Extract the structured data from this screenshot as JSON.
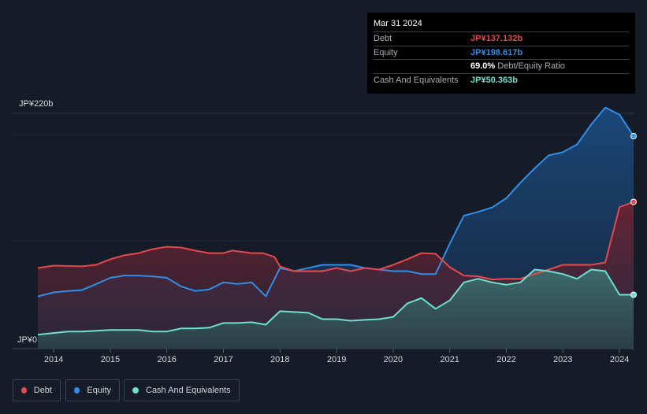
{
  "tooltip": {
    "date": "Mar 31 2024",
    "debt_label": "Debt",
    "debt_value": "JP¥137.132b",
    "equity_label": "Equity",
    "equity_value": "JP¥198.617b",
    "ratio_value": "69.0%",
    "ratio_label": "Debt/Equity Ratio",
    "cash_label": "Cash And Equivalents",
    "cash_value": "JP¥50.363b"
  },
  "legend": {
    "debt": "Debt",
    "equity": "Equity",
    "cash": "Cash And Equivalents"
  },
  "colors": {
    "debt": "#e5484d",
    "equity": "#2f8fe8",
    "cash": "#6fe0cf",
    "background": "#151c28"
  },
  "chart_data": {
    "type": "area",
    "title": "",
    "ylim": [
      0,
      220
    ],
    "xlim": [
      2013.72,
      2024.25
    ],
    "y_top_label": "JP¥220b",
    "y_bottom_label": "JP¥0",
    "x_ticks": [
      2014,
      2015,
      2016,
      2017,
      2018,
      2019,
      2020,
      2021,
      2022,
      2023,
      2024
    ],
    "x_tick_labels": [
      "2014",
      "2015",
      "2016",
      "2017",
      "2018",
      "2019",
      "2020",
      "2021",
      "2022",
      "2023",
      "2024"
    ],
    "series": [
      {
        "name": "Debt",
        "points": [
          [
            2013.72,
            75.4
          ],
          [
            2014.0,
            77.6
          ],
          [
            2014.5,
            76.9
          ],
          [
            2014.75,
            78.3
          ],
          [
            2015.0,
            83.5
          ],
          [
            2015.25,
            87.2
          ],
          [
            2015.5,
            89.3
          ],
          [
            2015.75,
            93.0
          ],
          [
            2016.0,
            95.2
          ],
          [
            2016.25,
            94.5
          ],
          [
            2016.5,
            91.6
          ],
          [
            2016.75,
            89.3
          ],
          [
            2017.0,
            89.3
          ],
          [
            2017.15,
            91.6
          ],
          [
            2017.5,
            89.3
          ],
          [
            2017.7,
            89.3
          ],
          [
            2017.9,
            85.7
          ],
          [
            2018.0,
            76.9
          ],
          [
            2018.25,
            72.4
          ],
          [
            2018.5,
            72.4
          ],
          [
            2018.75,
            72.4
          ],
          [
            2019.0,
            75.4
          ],
          [
            2019.25,
            72.4
          ],
          [
            2019.5,
            75.4
          ],
          [
            2019.75,
            73.9
          ],
          [
            2020.0,
            78.3
          ],
          [
            2020.25,
            83.5
          ],
          [
            2020.5,
            89.3
          ],
          [
            2020.75,
            88.7
          ],
          [
            2021.0,
            76.2
          ],
          [
            2021.25,
            68.3
          ],
          [
            2021.5,
            67.6
          ],
          [
            2021.75,
            64.6
          ],
          [
            2022.0,
            65.3
          ],
          [
            2022.25,
            65.3
          ],
          [
            2022.5,
            69.7
          ],
          [
            2022.75,
            73.9
          ],
          [
            2023.0,
            78.3
          ],
          [
            2023.25,
            78.3
          ],
          [
            2023.5,
            78.3
          ],
          [
            2023.75,
            80.5
          ],
          [
            2024.0,
            132.2
          ],
          [
            2024.25,
            137.1
          ]
        ]
      },
      {
        "name": "Equity",
        "points": [
          [
            2013.72,
            48.8
          ],
          [
            2014.0,
            52.6
          ],
          [
            2014.25,
            53.9
          ],
          [
            2014.5,
            54.7
          ],
          [
            2014.75,
            60.4
          ],
          [
            2015.0,
            66.2
          ],
          [
            2015.25,
            68.3
          ],
          [
            2015.5,
            68.3
          ],
          [
            2015.75,
            67.6
          ],
          [
            2016.0,
            66.2
          ],
          [
            2016.25,
            58.2
          ],
          [
            2016.5,
            53.9
          ],
          [
            2016.75,
            55.4
          ],
          [
            2017.0,
            61.9
          ],
          [
            2017.25,
            60.4
          ],
          [
            2017.5,
            61.9
          ],
          [
            2017.75,
            48.8
          ],
          [
            2018.0,
            75.4
          ],
          [
            2018.25,
            72.4
          ],
          [
            2018.5,
            75.4
          ],
          [
            2018.75,
            78.3
          ],
          [
            2019.0,
            78.3
          ],
          [
            2019.25,
            78.3
          ],
          [
            2019.5,
            75.4
          ],
          [
            2019.75,
            73.9
          ],
          [
            2020.0,
            72.4
          ],
          [
            2020.25,
            72.4
          ],
          [
            2020.5,
            69.7
          ],
          [
            2020.75,
            69.7
          ],
          [
            2021.0,
            98.0
          ],
          [
            2021.25,
            124.2
          ],
          [
            2021.5,
            127.8
          ],
          [
            2021.75,
            131.9
          ],
          [
            2022.0,
            140.6
          ],
          [
            2022.25,
            155.1
          ],
          [
            2022.5,
            168.4
          ],
          [
            2022.75,
            180.6
          ],
          [
            2023.0,
            183.5
          ],
          [
            2023.25,
            190.8
          ],
          [
            2023.5,
            209.4
          ],
          [
            2023.75,
            225.2
          ],
          [
            2024.0,
            218.7
          ],
          [
            2024.25,
            198.6
          ]
        ]
      },
      {
        "name": "Cash And Equivalents",
        "points": [
          [
            2013.72,
            13.1
          ],
          [
            2014.0,
            14.6
          ],
          [
            2014.25,
            16.0
          ],
          [
            2014.5,
            16.0
          ],
          [
            2014.75,
            16.7
          ],
          [
            2015.0,
            17.5
          ],
          [
            2015.25,
            17.5
          ],
          [
            2015.5,
            17.5
          ],
          [
            2015.75,
            16.0
          ],
          [
            2016.0,
            16.0
          ],
          [
            2016.25,
            18.9
          ],
          [
            2016.5,
            18.9
          ],
          [
            2016.75,
            19.6
          ],
          [
            2017.0,
            24.0
          ],
          [
            2017.25,
            24.0
          ],
          [
            2017.5,
            24.7
          ],
          [
            2017.75,
            22.4
          ],
          [
            2018.0,
            35.0
          ],
          [
            2018.25,
            34.3
          ],
          [
            2018.5,
            33.5
          ],
          [
            2018.75,
            27.6
          ],
          [
            2019.0,
            27.6
          ],
          [
            2019.25,
            26.1
          ],
          [
            2019.5,
            26.9
          ],
          [
            2019.75,
            27.6
          ],
          [
            2020.0,
            29.6
          ],
          [
            2020.25,
            42.2
          ],
          [
            2020.5,
            47.3
          ],
          [
            2020.75,
            37.3
          ],
          [
            2021.0,
            45.1
          ],
          [
            2021.25,
            61.9
          ],
          [
            2021.5,
            65.3
          ],
          [
            2021.75,
            61.9
          ],
          [
            2022.0,
            59.7
          ],
          [
            2022.25,
            61.9
          ],
          [
            2022.5,
            73.9
          ],
          [
            2022.75,
            72.4
          ],
          [
            2023.0,
            69.7
          ],
          [
            2023.25,
            65.3
          ],
          [
            2023.5,
            73.9
          ],
          [
            2023.75,
            72.4
          ],
          [
            2024.0,
            50.4
          ],
          [
            2024.25,
            50.4
          ]
        ]
      }
    ]
  }
}
